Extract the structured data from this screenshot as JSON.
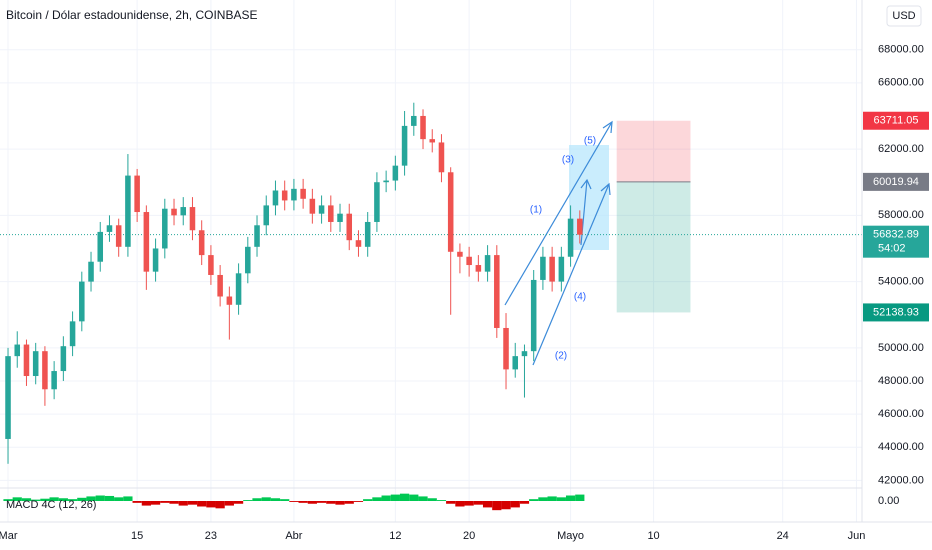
{
  "chart_data": {
    "type": "candlestick",
    "title": "Bitcoin / Dólar estadounidense, 2h, COINBASE",
    "currency": "USD",
    "x": [
      0,
      1,
      2,
      3,
      4,
      5,
      6,
      7,
      8,
      9,
      10,
      11,
      12,
      13,
      14,
      15,
      16,
      17,
      18,
      19,
      20,
      21,
      22,
      23,
      24,
      25,
      26,
      27,
      28,
      29,
      30,
      31,
      32,
      33,
      34,
      35,
      36,
      37,
      38,
      39,
      40,
      41,
      42,
      43,
      44,
      45,
      46,
      47,
      48,
      49,
      50,
      51,
      52,
      53,
      54,
      55,
      56,
      57,
      58,
      59,
      60,
      61,
      62
    ],
    "open": [
      44500,
      49500,
      50200,
      48300,
      49800,
      47500,
      48600,
      50100,
      51600,
      54000,
      55200,
      57000,
      57400,
      56100,
      60400,
      58200,
      54600,
      56000,
      58400,
      58000,
      58500,
      57100,
      55600,
      54400,
      53100,
      52600,
      54500,
      56100,
      57400,
      58600,
      59500,
      58900,
      59600,
      59000,
      58100,
      58600,
      57600,
      58100,
      56500,
      56100,
      57600,
      60000,
      60100,
      61000,
      63400,
      64000,
      62600,
      62400,
      60600,
      55800,
      55500,
      55000,
      54600,
      55600,
      51200,
      48700,
      49500,
      49800,
      54100,
      55500,
      54000,
      55500,
      57800
    ],
    "high": [
      50000,
      51000,
      50500,
      50300,
      50100,
      49200,
      50700,
      52200,
      54600,
      55800,
      57600,
      58000,
      57800,
      61700,
      60800,
      58600,
      56600,
      59000,
      59000,
      59100,
      59100,
      57700,
      56200,
      55000,
      53700,
      55100,
      56700,
      58000,
      59200,
      60100,
      60100,
      60200,
      60200,
      59600,
      59200,
      59200,
      58700,
      58700,
      57100,
      58200,
      60600,
      60700,
      61600,
      64300,
      64800,
      64400,
      63200,
      62900,
      60900,
      56300,
      56100,
      55600,
      56200,
      56200,
      52100,
      50300,
      50200,
      54700,
      56100,
      56100,
      56100,
      58600,
      58300
    ],
    "low": [
      43000,
      48800,
      47700,
      47800,
      46500,
      46900,
      48000,
      49500,
      51000,
      53400,
      54600,
      56400,
      55500,
      55500,
      57600,
      53500,
      54000,
      55400,
      57400,
      57400,
      56500,
      55000,
      53800,
      52500,
      50500,
      52000,
      53900,
      55500,
      56800,
      58000,
      58300,
      58300,
      58400,
      57500,
      57500,
      57000,
      57000,
      55900,
      55500,
      55500,
      57000,
      59400,
      59500,
      60400,
      62800,
      62000,
      61800,
      60000,
      52000,
      54500,
      54300,
      54000,
      54000,
      50600,
      47500,
      48200,
      47000,
      49200,
      53500,
      53400,
      53400,
      54900,
      56300
    ],
    "close": [
      49500,
      50200,
      48300,
      49800,
      47500,
      48600,
      50100,
      51600,
      54000,
      55200,
      57000,
      57400,
      56100,
      60400,
      58200,
      54600,
      56000,
      58400,
      58000,
      58500,
      57100,
      55600,
      54400,
      53100,
      52600,
      54500,
      56100,
      57400,
      58600,
      59500,
      58900,
      59600,
      59000,
      58100,
      58600,
      57600,
      58100,
      56500,
      56100,
      57600,
      60000,
      60100,
      61000,
      63400,
      64000,
      62600,
      62400,
      60600,
      55800,
      55500,
      55000,
      54600,
      55600,
      51200,
      48700,
      49500,
      49800,
      54100,
      55500,
      54000,
      55500,
      57800,
      56833
    ],
    "up_color": "#26a69a",
    "down_color": "#ef5350",
    "ylim": [
      41600,
      71000
    ],
    "yticks": [
      {
        "value": 42000,
        "label": "42000.00"
      },
      {
        "value": 44000,
        "label": "44000.00"
      },
      {
        "value": 46000,
        "label": "46000.00"
      },
      {
        "value": 48000,
        "label": "48000.00"
      },
      {
        "value": 50000,
        "label": "50000.00"
      },
      {
        "value": 54000,
        "label": "54000.00"
      },
      {
        "value": 58000,
        "label": "58000.00"
      },
      {
        "value": 62000,
        "label": "62000.00"
      },
      {
        "value": 66000,
        "label": "66000.00"
      },
      {
        "value": 68000,
        "label": "68000.00"
      }
    ],
    "xlim": [
      -0.87,
      92.6
    ],
    "xticks": [
      {
        "value": 0,
        "label": "Mar"
      },
      {
        "value": 14,
        "label": "15"
      },
      {
        "value": 22,
        "label": "23"
      },
      {
        "value": 31,
        "label": "Abr"
      },
      {
        "value": 42,
        "label": "12"
      },
      {
        "value": 50,
        "label": "20"
      },
      {
        "value": 61,
        "label": "Mayo"
      },
      {
        "value": 70,
        "label": "10"
      },
      {
        "value": 84,
        "label": "24"
      },
      {
        "value": 92,
        "label": "Jun"
      }
    ],
    "grid": true,
    "last_price": {
      "value": 56832.89,
      "countdown": "54:02",
      "color": "#26a69a"
    },
    "position": {
      "start": 66,
      "end": 74,
      "stop": 63711.05,
      "entry": 60019.94,
      "target": 52138.93,
      "stop_color": "#f23645",
      "entry_color": "#787b86",
      "target_color": "#089981"
    },
    "waves": [
      "(1)",
      "(2)",
      "(3)",
      "(4)",
      "(5)"
    ],
    "indicator": {
      "name": "MACD 4C (12, 26)",
      "values": [
        200,
        400,
        300,
        150,
        250,
        400,
        300,
        200,
        350,
        500,
        600,
        550,
        400,
        500,
        -200,
        -500,
        -400,
        -200,
        -300,
        -500,
        -400,
        -600,
        -700,
        -800,
        -500,
        -300,
        100,
        300,
        400,
        300,
        200,
        -100,
        -200,
        -300,
        -200,
        -300,
        -400,
        -300,
        -100,
        200,
        400,
        600,
        700,
        800,
        700,
        500,
        300,
        100,
        -300,
        -600,
        -500,
        -400,
        -700,
        -1000,
        -900,
        -700,
        -300,
        200,
        400,
        500,
        400,
        600,
        700
      ],
      "ylim": [
        -1200,
        1200
      ],
      "yticks": [
        {
          "value": 0,
          "label": "0.00"
        }
      ],
      "pos_color": "#00c853",
      "neg_color": "#d50000"
    }
  }
}
